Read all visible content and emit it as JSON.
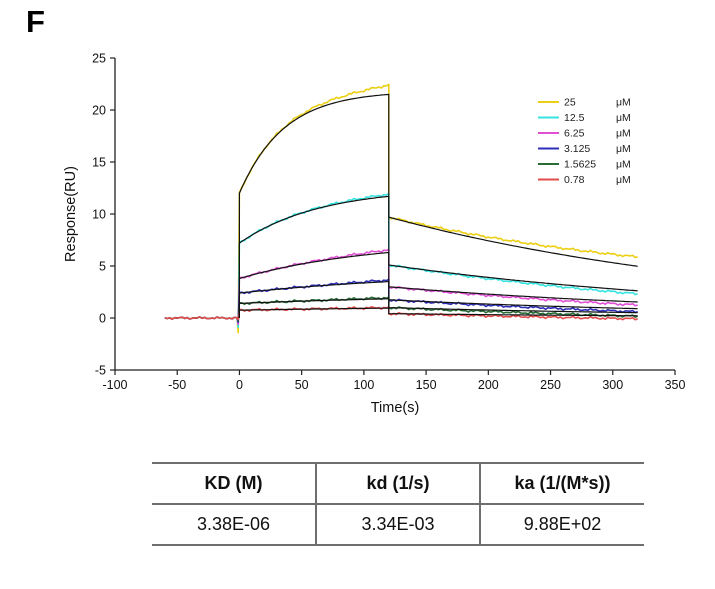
{
  "panel_label": "F",
  "chart_data": {
    "type": "line",
    "title": "",
    "xlabel": "Time(s)",
    "ylabel": "Response(RU)",
    "xlim": [
      -100,
      350
    ],
    "ylim": [
      -5,
      25
    ],
    "x_ticks": [
      -100,
      -50,
      0,
      50,
      100,
      150,
      200,
      250,
      300,
      350
    ],
    "y_ticks": [
      -5,
      0,
      5,
      10,
      15,
      20,
      25
    ],
    "grid": false,
    "legend_position": "top-right",
    "fit_color": "#111111",
    "baseline_start": -60,
    "association_start": 0,
    "association_end": 120,
    "dissociation_end": 320,
    "kd_fit": 0.00334,
    "series": [
      {
        "label": "25",
        "unit": "μM",
        "color": "#eccf12",
        "jump": 12.0,
        "plateau": 21.5,
        "kobs": 0.0281,
        "drop": 9.7,
        "dip": 1.4,
        "dev_assoc": 0.9,
        "dev_diss": 0.9
      },
      {
        "label": "12.5",
        "unit": "μM",
        "color": "#35e3e0",
        "jump": 7.2,
        "plateau": 11.7,
        "kobs": 0.0157,
        "drop": 5.1,
        "dip": 0.9,
        "dev_assoc": 0.2,
        "dev_diss": -0.3
      },
      {
        "label": "6.25",
        "unit": "μM",
        "color": "#e14fd6",
        "jump": 3.8,
        "plateau": 6.3,
        "kobs": 0.0095,
        "drop": 3.0,
        "dip": 0.6,
        "dev_assoc": 0.25,
        "dev_diss": -0.3
      },
      {
        "label": "3.125",
        "unit": "μM",
        "color": "#2e2eb8",
        "jump": 2.4,
        "plateau": 3.5,
        "kobs": 0.0064,
        "drop": 1.75,
        "dip": 0.4,
        "dev_assoc": 0.15,
        "dev_diss": -0.3
      },
      {
        "label": "1.5625",
        "unit": "μM",
        "color": "#276b35",
        "jump": 1.4,
        "plateau": 1.85,
        "kobs": 0.0049,
        "drop": 1.0,
        "dip": 0.25,
        "dev_assoc": 0.1,
        "dev_diss": -0.35
      },
      {
        "label": "0.78",
        "unit": "μM",
        "color": "#e34b4b",
        "jump": 0.75,
        "plateau": 0.95,
        "kobs": 0.0041,
        "drop": 0.42,
        "dip": 0.15,
        "dev_assoc": 0.05,
        "dev_diss": -0.3
      }
    ]
  },
  "kinetics_table": {
    "headers": [
      "KD (M)",
      "kd (1/s)",
      "ka (1/(M*s))"
    ],
    "rows": [
      [
        "3.38E-06",
        "3.34E-03",
        "9.88E+02"
      ]
    ]
  }
}
